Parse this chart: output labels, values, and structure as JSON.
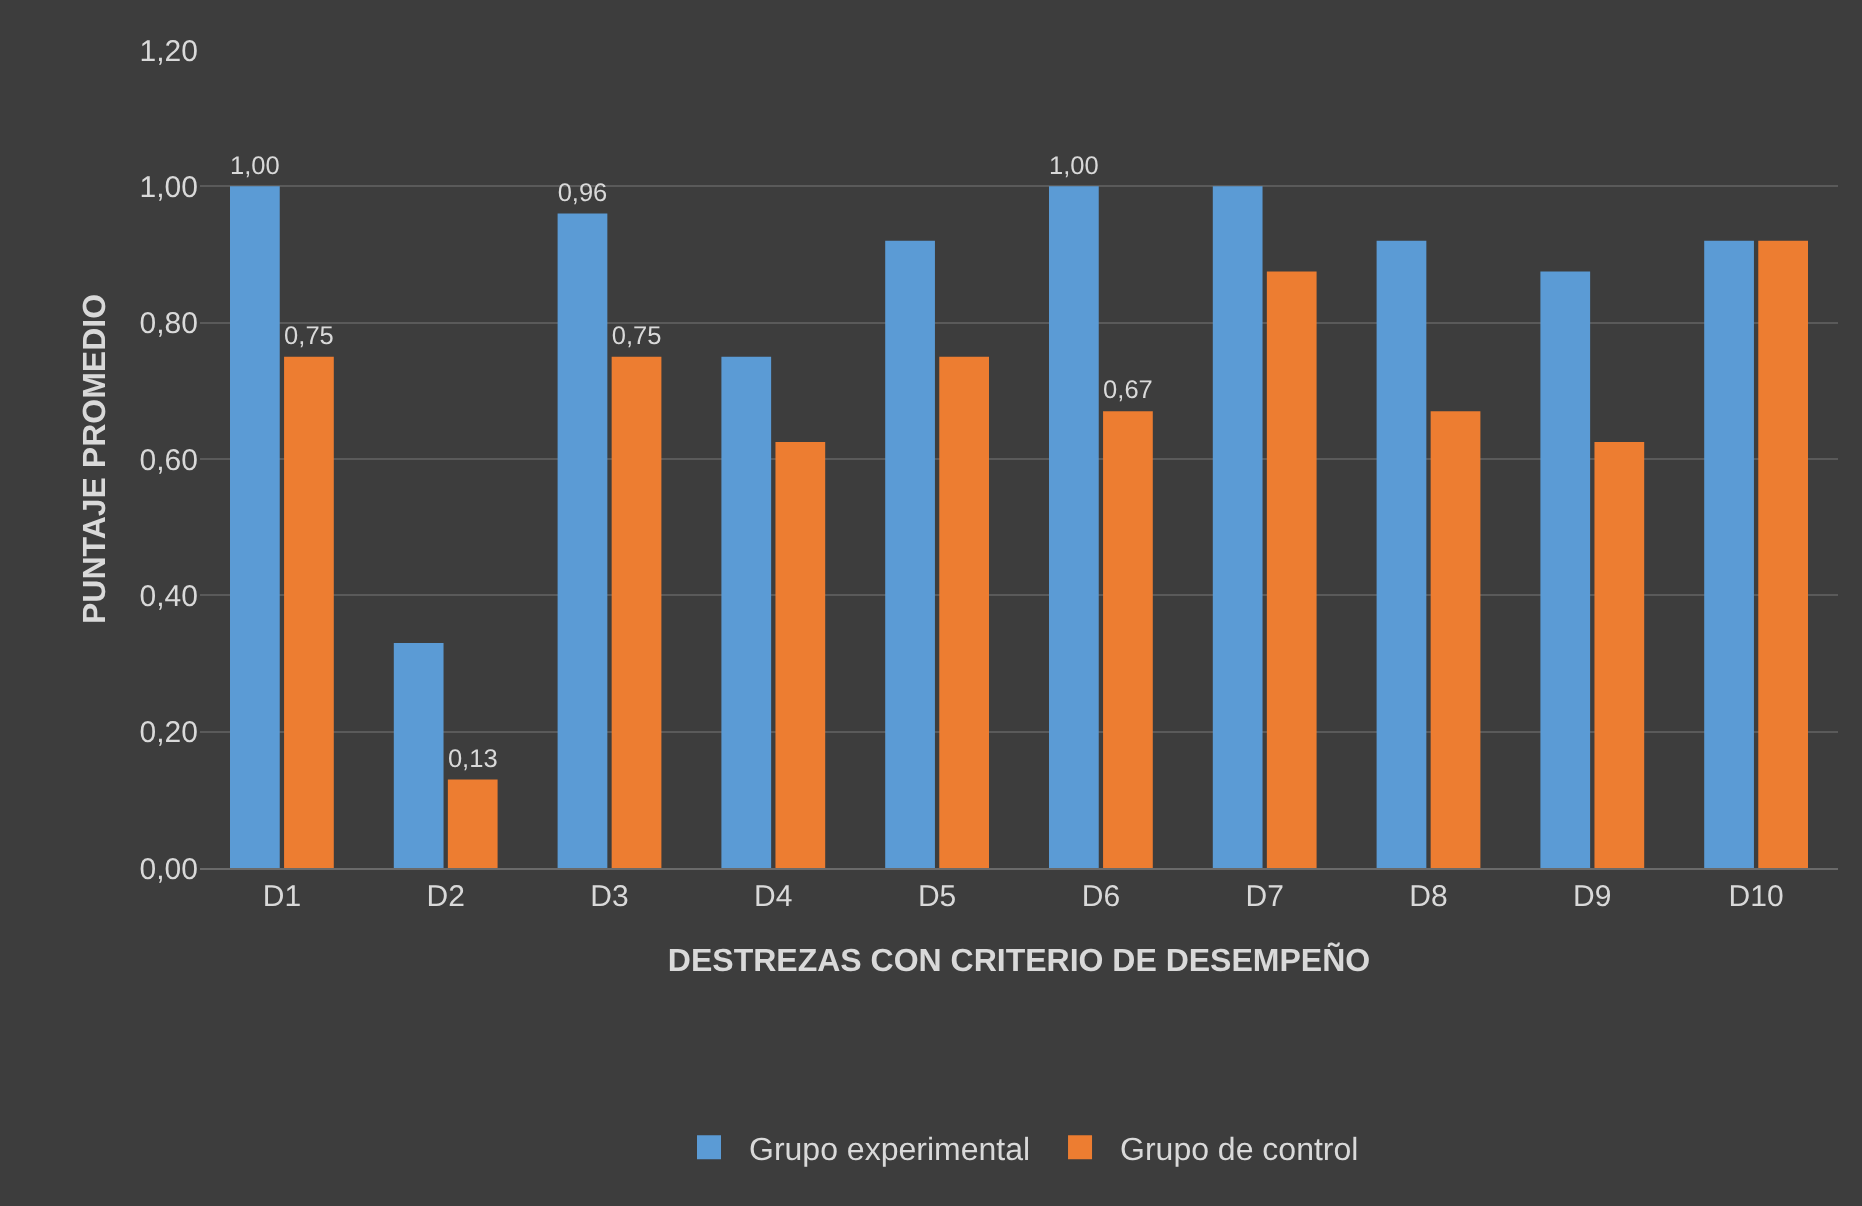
{
  "chart_data": {
    "type": "bar",
    "xlabel": "DESTREZAS CON CRITERIO DE DESEMPEÑO",
    "ylabel": "PUNTAJE PROMEDIO",
    "categories": [
      "D1",
      "D2",
      "D3",
      "D4",
      "D5",
      "D6",
      "D7",
      "D8",
      "D9",
      "D10"
    ],
    "series": [
      {
        "name": "Grupo experimental",
        "color": "#5b9bd5",
        "values": [
          1.0,
          0.33,
          0.96,
          0.75,
          0.92,
          1.0,
          1.0,
          0.92,
          0.875,
          0.92
        ],
        "value_labels": [
          "1,00",
          null,
          "0,96",
          null,
          null,
          "1,00",
          null,
          null,
          null,
          null
        ]
      },
      {
        "name": "Grupo de control",
        "color": "#ed7d31",
        "values": [
          0.75,
          0.13,
          0.75,
          0.625,
          0.75,
          0.67,
          0.875,
          0.67,
          0.625,
          0.92
        ],
        "value_labels": [
          "0,75",
          "0,13",
          "0,75",
          null,
          null,
          "0,67",
          null,
          null,
          null,
          null
        ]
      }
    ],
    "ylim": [
      0,
      1.2
    ],
    "yticks": [
      {
        "value": 0,
        "label": "0,00"
      },
      {
        "value": 0.2,
        "label": "0,20"
      },
      {
        "value": 0.4,
        "label": "0,40"
      },
      {
        "value": 0.6,
        "label": "0,60"
      },
      {
        "value": 0.8,
        "label": "0,80"
      },
      {
        "value": 1.0,
        "label": "1,00"
      },
      {
        "value": 1.2,
        "label": "1,20"
      }
    ],
    "grid": "y",
    "legend": "bottom"
  }
}
